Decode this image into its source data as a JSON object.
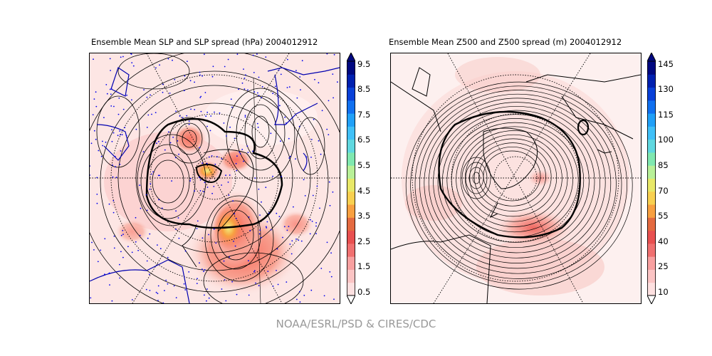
{
  "panels": [
    {
      "title": "Ensemble Mean SLP and SLP spread (hPa) 2004012912",
      "colorbar": {
        "ticks": [
          "9.5",
          "8.5",
          "7.5",
          "6.5",
          "5.5",
          "4.5",
          "3.5",
          "2.5",
          "1.5",
          "0.5"
        ],
        "colors": [
          "#fde0e0",
          "#fbc4c4",
          "#f8a0a0",
          "#f07070",
          "#e85050",
          "#e46a40",
          "#f8a040",
          "#f8d050",
          "#e8e868",
          "#b8f098",
          "#80e8b0",
          "#60d8e0",
          "#40c0f8",
          "#20a0f8",
          "#1070f0",
          "#0840d8",
          "#0020b0",
          "#000880"
        ]
      },
      "station_color": "#0000ee"
    },
    {
      "title": "Ensemble Mean Z500 and Z500 spread (m) 2004012912",
      "colorbar": {
        "ticks": [
          "145",
          "130",
          "115",
          "100",
          "85",
          "70",
          "55",
          "40",
          "25",
          "10"
        ],
        "colors": [
          "#fde0e0",
          "#fbc4c4",
          "#f8a0a0",
          "#f07070",
          "#e85050",
          "#e46a40",
          "#f8a040",
          "#f8d050",
          "#e8e868",
          "#b8f098",
          "#80e8b0",
          "#60d8e0",
          "#40c0f8",
          "#20a0f8",
          "#1070f0",
          "#0840d8",
          "#0020b0",
          "#000880"
        ]
      }
    }
  ],
  "footer": "NOAA/ESRL/PSD & CIRES/CDC"
}
